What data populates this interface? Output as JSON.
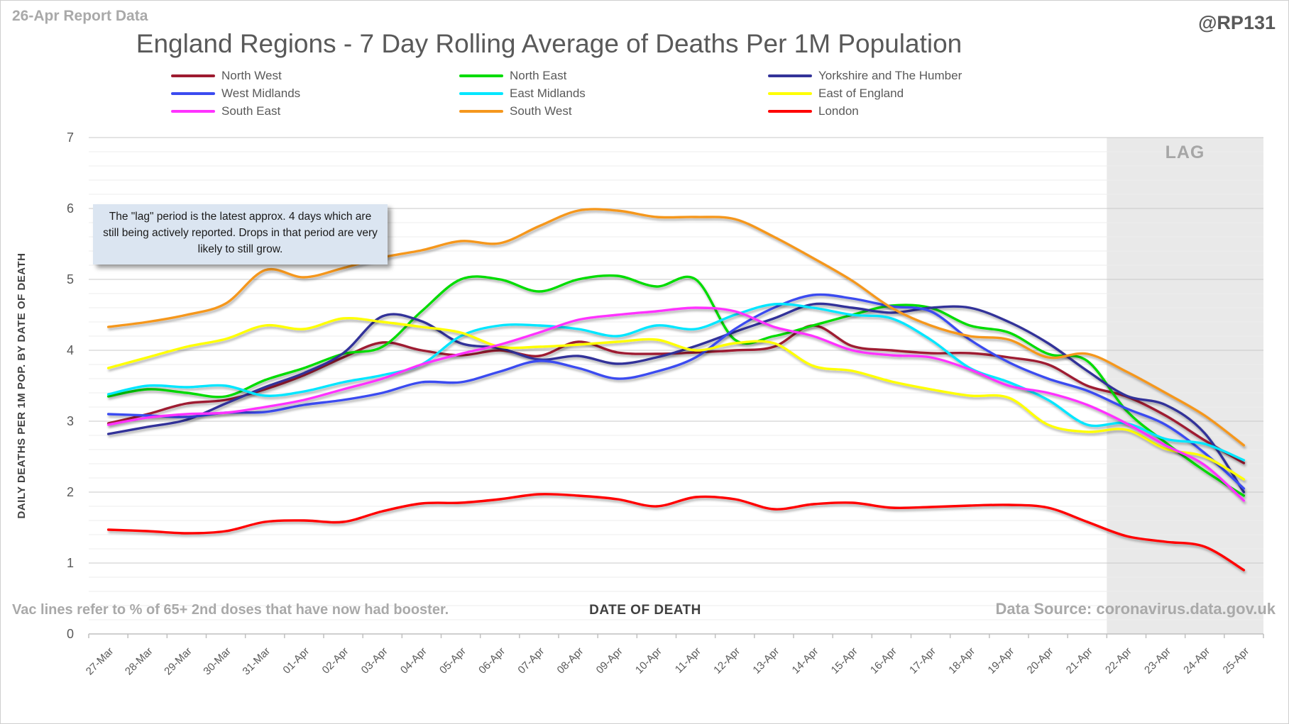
{
  "header": {
    "report_label": "26-Apr Report Data",
    "handle": "@RP131"
  },
  "annotation": {
    "text": "The \"lag\" period is the latest approx. 4 days which are still being actively reported.  Drops in that period are very likely to still grow."
  },
  "footer": {
    "left": "Vac lines refer to % of 65+ 2nd doses that have now had booster.",
    "right": "Data Source: coronavirus.data.gov.uk"
  },
  "chart_data": {
    "type": "line",
    "title": "England Regions - 7 Day Rolling Average of Deaths Per 1M Population",
    "xlabel": "DATE OF DEATH",
    "ylabel": "DAILY DEATHS PER 1M POP. BY DATE OF DEATH",
    "ylim": [
      0,
      7
    ],
    "y_ticks": [
      7,
      6,
      5,
      4,
      3,
      2,
      1,
      0
    ],
    "grid": "major and minor horizontal gridlines, minor step 0.2",
    "legend_position": "top",
    "lag": {
      "label": "LAG",
      "start_index": 26,
      "note": "shaded band covers 22-Apr through 25-Apr"
    },
    "categories": [
      "27-Mar",
      "28-Mar",
      "29-Mar",
      "30-Mar",
      "31-Mar",
      "01-Apr",
      "02-Apr",
      "03-Apr",
      "04-Apr",
      "05-Apr",
      "06-Apr",
      "07-Apr",
      "08-Apr",
      "09-Apr",
      "10-Apr",
      "11-Apr",
      "12-Apr",
      "13-Apr",
      "14-Apr",
      "15-Apr",
      "16-Apr",
      "17-Apr",
      "18-Apr",
      "19-Apr",
      "20-Apr",
      "21-Apr",
      "22-Apr",
      "23-Apr",
      "24-Apr",
      "25-Apr"
    ],
    "series": [
      {
        "name": "North West",
        "color": "#9E1B30",
        "values": [
          2.97,
          3.1,
          3.25,
          3.3,
          3.45,
          3.65,
          3.9,
          4.11,
          4.0,
          3.93,
          4.0,
          3.92,
          4.12,
          3.97,
          3.95,
          3.97,
          4.0,
          4.05,
          4.35,
          4.06,
          4.0,
          3.96,
          3.96,
          3.9,
          3.8,
          3.5,
          3.35,
          3.08,
          2.73,
          2.41
        ]
      },
      {
        "name": "North East",
        "color": "#00DC00",
        "values": [
          3.35,
          3.45,
          3.4,
          3.35,
          3.58,
          3.75,
          3.95,
          4.05,
          4.55,
          5.0,
          5.0,
          4.83,
          5.0,
          5.05,
          4.9,
          5.0,
          4.15,
          4.2,
          4.35,
          4.5,
          4.63,
          4.6,
          4.35,
          4.25,
          3.95,
          3.85,
          3.15,
          2.7,
          2.3,
          1.95
        ]
      },
      {
        "name": "Yorkshire and The Humber",
        "color": "#333399",
        "values": [
          2.82,
          2.92,
          3.02,
          3.25,
          3.48,
          3.68,
          3.96,
          4.48,
          4.41,
          4.1,
          4.03,
          3.87,
          3.92,
          3.81,
          3.9,
          4.06,
          4.26,
          4.45,
          4.65,
          4.6,
          4.53,
          4.6,
          4.6,
          4.4,
          4.1,
          3.71,
          3.36,
          3.23,
          2.83,
          2.0
        ]
      },
      {
        "name": "West Midlands",
        "color": "#3B4BF0",
        "values": [
          3.1,
          3.08,
          3.06,
          3.12,
          3.13,
          3.23,
          3.3,
          3.4,
          3.55,
          3.55,
          3.7,
          3.85,
          3.75,
          3.6,
          3.7,
          3.9,
          4.3,
          4.6,
          4.78,
          4.73,
          4.62,
          4.55,
          4.15,
          3.83,
          3.6,
          3.43,
          3.18,
          2.95,
          2.55,
          2.05
        ]
      },
      {
        "name": "East Midlands",
        "color": "#00E6FF",
        "values": [
          3.38,
          3.5,
          3.48,
          3.5,
          3.36,
          3.42,
          3.55,
          3.65,
          3.8,
          4.2,
          4.35,
          4.35,
          4.3,
          4.2,
          4.35,
          4.3,
          4.5,
          4.65,
          4.6,
          4.5,
          4.45,
          4.15,
          3.75,
          3.55,
          3.3,
          2.95,
          2.97,
          2.75,
          2.68,
          2.45
        ]
      },
      {
        "name": "East of England",
        "color": "#FFFF00",
        "values": [
          3.75,
          3.9,
          4.05,
          4.16,
          4.35,
          4.3,
          4.45,
          4.4,
          4.33,
          4.25,
          4.05,
          4.05,
          4.08,
          4.12,
          4.15,
          4.0,
          4.1,
          4.1,
          3.78,
          3.71,
          3.56,
          3.45,
          3.36,
          3.33,
          2.95,
          2.85,
          2.88,
          2.61,
          2.5,
          2.18
        ]
      },
      {
        "name": "South East",
        "color": "#FF33FF",
        "values": [
          2.95,
          3.05,
          3.1,
          3.12,
          3.2,
          3.3,
          3.45,
          3.6,
          3.8,
          3.95,
          4.08,
          4.25,
          4.43,
          4.5,
          4.55,
          4.6,
          4.55,
          4.33,
          4.2,
          4.0,
          3.93,
          3.9,
          3.73,
          3.5,
          3.4,
          3.23,
          2.97,
          2.66,
          2.38,
          1.88
        ]
      },
      {
        "name": "South West",
        "color": "#F5971E",
        "values": [
          4.33,
          4.4,
          4.5,
          4.66,
          5.13,
          5.03,
          5.16,
          5.31,
          5.41,
          5.54,
          5.51,
          5.75,
          5.97,
          5.97,
          5.88,
          5.88,
          5.85,
          5.6,
          5.3,
          4.98,
          4.6,
          4.35,
          4.2,
          4.15,
          3.9,
          3.95,
          3.7,
          3.4,
          3.08,
          2.66
        ]
      },
      {
        "name": "London",
        "color": "#FF0000",
        "values": [
          1.47,
          1.45,
          1.42,
          1.45,
          1.58,
          1.6,
          1.58,
          1.73,
          1.84,
          1.85,
          1.9,
          1.97,
          1.95,
          1.9,
          1.8,
          1.93,
          1.9,
          1.76,
          1.83,
          1.85,
          1.78,
          1.79,
          1.81,
          1.82,
          1.78,
          1.58,
          1.38,
          1.3,
          1.23,
          0.9
        ]
      }
    ]
  }
}
